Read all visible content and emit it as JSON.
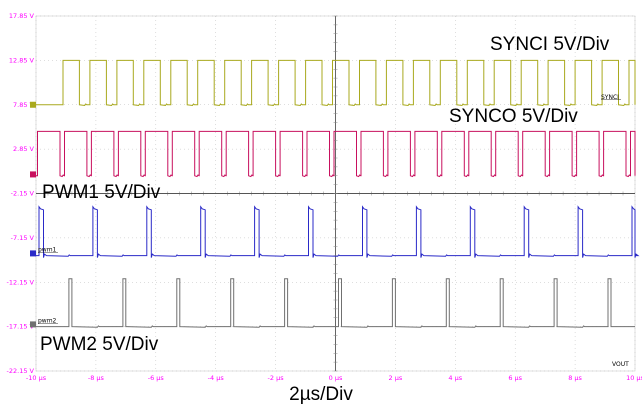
{
  "chart_data": {
    "type": "line",
    "title": "",
    "xlabel": "2µs/Div",
    "ylabel": "",
    "x_unit": "µs",
    "y_unit": "V",
    "xlim": [
      -10,
      10
    ],
    "ylim": [
      -22.15,
      17.85
    ],
    "grid": true,
    "x_ticks": [
      "-10 µs",
      "-8 µs",
      "-6 µs",
      "-4 µs",
      "-2 µs",
      "0 µs",
      "2 µs",
      "4 µs",
      "6 µs",
      "8 µs",
      "10 µs"
    ],
    "y_ticks": [
      "17.85 V",
      "12.85 V",
      "7.85 V",
      "2.85 V",
      "-2.15 V",
      "-7.15 V",
      "-12.15 V",
      "-17.15 V",
      "-22.15 V"
    ],
    "series": [
      {
        "name": "SYNCI 5V/Div",
        "color": "#a9a91e",
        "shape": "pulse",
        "low": 7.85,
        "high": 12.85,
        "start": -9.1,
        "period": 0.9,
        "width": 0.55,
        "marker_label": "SYNCI",
        "marker_value": 7.85
      },
      {
        "name": "SYNCO 5V/Div",
        "color": "#c8105e",
        "shape": "pulse",
        "low": -0.15,
        "high": 4.85,
        "start": -9.95,
        "period": 0.9,
        "width": 0.75,
        "marker_label": "",
        "marker_value": 0.0
      },
      {
        "name": "PWM1 5V/Div",
        "color": "#2a2ac8",
        "shape": "spike",
        "low": -9.15,
        "high": -3.65,
        "start": -9.9,
        "period": 1.8,
        "width": 0.15,
        "marker_label": "pwm1",
        "marker_value": -8.9
      },
      {
        "name": "PWM2 5V/Div",
        "color": "#707070",
        "shape": "pulse",
        "low": -17.15,
        "high": -11.75,
        "start": -8.9,
        "period": 1.8,
        "width": 0.1,
        "marker_label": "pwm2",
        "marker_value": -16.9
      }
    ],
    "annotations": [
      "VOUT"
    ]
  }
}
